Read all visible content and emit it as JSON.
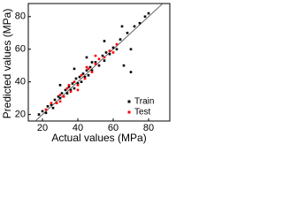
{
  "chart_data": {
    "type": "scatter",
    "x_label": "Actual values (MPa)",
    "y_label": "Predicted values (MPa)",
    "xlim": [
      12,
      92
    ],
    "ylim": [
      16,
      88
    ],
    "xticks": [
      20,
      40,
      60,
      80
    ],
    "yticks": [
      20,
      40,
      60,
      80
    ],
    "legend": "lower right",
    "series": [
      {
        "name": "Train",
        "color": "#000000",
        "x": [
          18,
          20,
          22,
          23,
          25,
          26,
          27,
          28,
          29,
          30,
          31,
          32,
          33,
          34,
          35,
          36,
          37,
          38,
          39,
          40,
          41,
          42,
          43,
          44,
          45,
          46,
          47,
          48,
          50,
          52,
          54,
          55,
          56,
          58,
          60,
          62,
          64,
          66,
          68,
          70,
          72,
          75,
          78,
          80,
          38,
          45,
          55,
          65,
          70,
          30,
          48
        ],
        "values": [
          20,
          22,
          21,
          25,
          26,
          24,
          29,
          27,
          31,
          30,
          33,
          31,
          35,
          33,
          37,
          35,
          39,
          36,
          42,
          39,
          43,
          40,
          45,
          43,
          47,
          44,
          49,
          47,
          52,
          50,
          56,
          53,
          58,
          57,
          61,
          60,
          66,
          50,
          70,
          46,
          74,
          76,
          80,
          82,
          48,
          55,
          65,
          74,
          60,
          38,
          52
        ]
      },
      {
        "name": "Test",
        "color": "#ff0000",
        "x": [
          22,
          25,
          28,
          30,
          32,
          34,
          36,
          38,
          40,
          42,
          44,
          46,
          48,
          50,
          52,
          55,
          58,
          60,
          35,
          40,
          45,
          30,
          50,
          62
        ],
        "values": [
          23,
          27,
          27,
          32,
          31,
          36,
          34,
          40,
          38,
          44,
          42,
          48,
          46,
          51,
          54,
          55,
          59,
          58,
          38,
          35,
          49,
          28,
          56,
          63
        ]
      }
    ]
  }
}
